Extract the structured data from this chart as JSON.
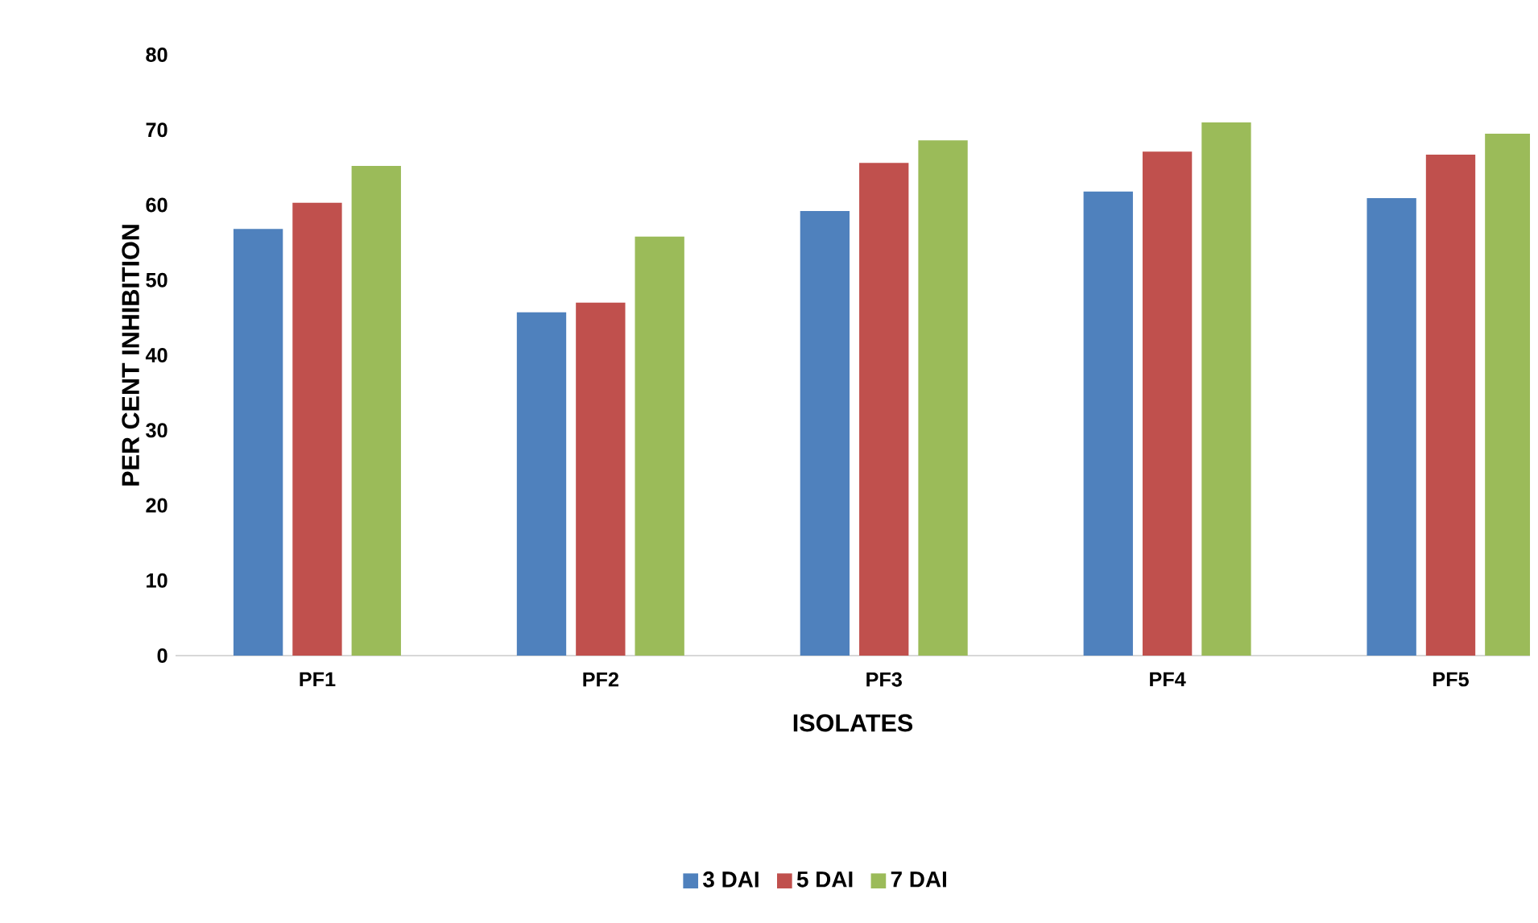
{
  "chart_data": {
    "type": "bar",
    "xlabel": "ISOLATES",
    "ylabel": "PER CENT INHIBITION",
    "categories": [
      "PF1",
      "PF2",
      "PF3",
      "PF4",
      "PF5"
    ],
    "series": [
      {
        "name": "3 DAI",
        "color": "#4f81bd",
        "values": [
          56.8,
          45.7,
          59.2,
          61.8,
          60.9
        ]
      },
      {
        "name": "5 DAI",
        "color": "#c0504d",
        "values": [
          60.3,
          47.0,
          65.6,
          67.1,
          66.7
        ]
      },
      {
        "name": "7 DAI",
        "color": "#9bbb59",
        "values": [
          65.2,
          55.8,
          68.6,
          71.0,
          69.5
        ]
      }
    ],
    "ylim": [
      0,
      80
    ],
    "yticks": [
      0,
      10,
      20,
      30,
      40,
      50,
      60,
      70,
      80
    ],
    "grid": false,
    "legend": "bottom"
  }
}
